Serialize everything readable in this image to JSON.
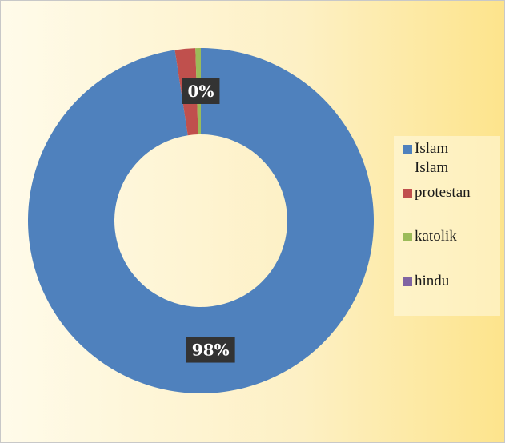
{
  "chart_data": {
    "type": "donut",
    "categories": [
      "Islam Islam",
      "protestan",
      "katolik",
      "hindu"
    ],
    "values": [
      97.6,
      1.9,
      0.5,
      0
    ],
    "value_labels": [
      "98%",
      null,
      null,
      "0%"
    ],
    "colors": [
      "#4f81bd",
      "#c0504d",
      "#9bbb59",
      "#8064a2"
    ],
    "legend": "right"
  }
}
